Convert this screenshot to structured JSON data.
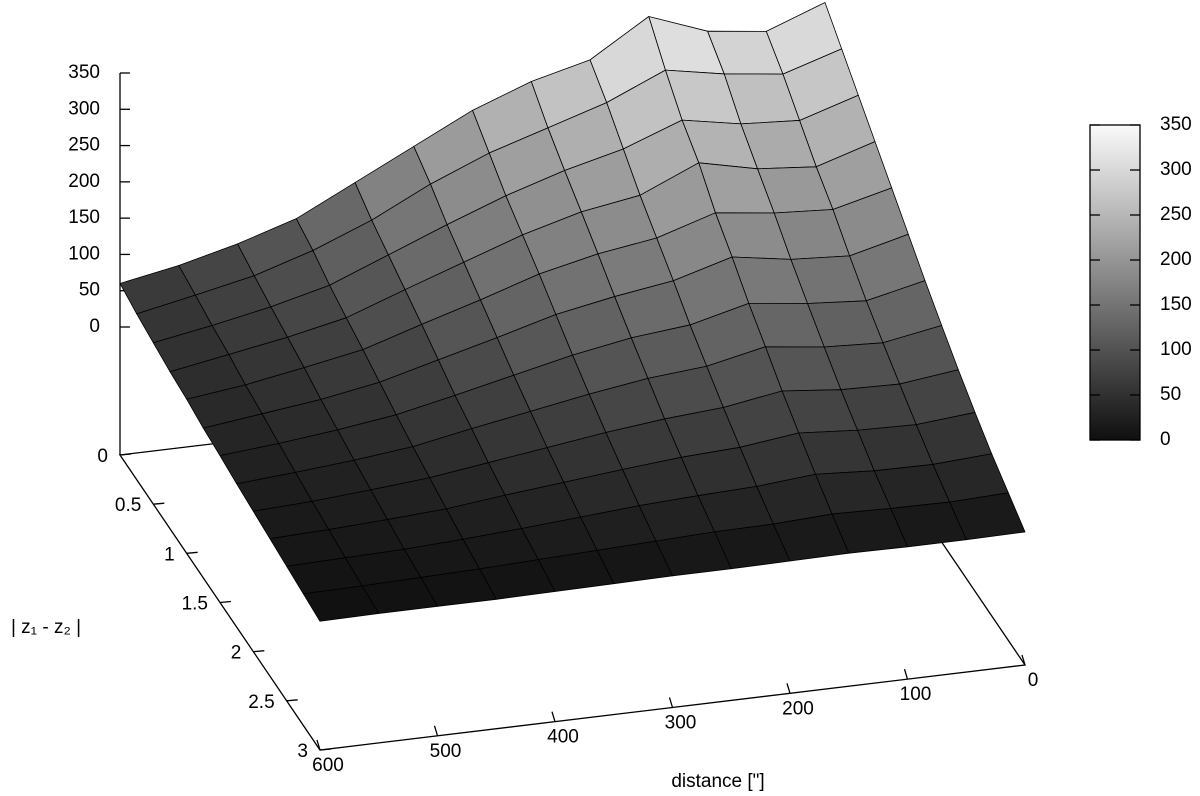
{
  "chart_data": {
    "type": "surface",
    "xlabel": "distance [\"]",
    "ylabel": "| z₁ - z₂ |",
    "x": [
      0,
      50,
      100,
      150,
      200,
      250,
      300,
      350,
      400,
      450,
      500,
      550,
      600
    ],
    "y": [
      0,
      0.25,
      0.5,
      0.75,
      1,
      1.25,
      1.5,
      1.75,
      2,
      2.25,
      2.5,
      2.75,
      3
    ],
    "z": [
      [
        330,
        300,
        310,
        340,
        290,
        270,
        240,
        200,
        160,
        120,
        95,
        75,
        60
      ],
      [
        300,
        275,
        285,
        300,
        265,
        240,
        215,
        182,
        142,
        110,
        85,
        68,
        52
      ],
      [
        270,
        245,
        250,
        265,
        235,
        215,
        190,
        160,
        128,
        96,
        76,
        60,
        46
      ],
      [
        240,
        215,
        222,
        240,
        205,
        192,
        170,
        142,
        114,
        85,
        68,
        54,
        40
      ],
      [
        210,
        190,
        195,
        205,
        180,
        168,
        150,
        124,
        100,
        75,
        60,
        46,
        36
      ],
      [
        180,
        160,
        165,
        178,
        155,
        143,
        128,
        106,
        85,
        64,
        50,
        40,
        30
      ],
      [
        150,
        132,
        138,
        148,
        128,
        120,
        106,
        88,
        70,
        53,
        42,
        33,
        26
      ],
      [
        122,
        108,
        112,
        122,
        105,
        98,
        86,
        72,
        58,
        43,
        34,
        27,
        21
      ],
      [
        95,
        85,
        87,
        95,
        82,
        76,
        67,
        56,
        45,
        34,
        27,
        21,
        17
      ],
      [
        70,
        63,
        65,
        71,
        61,
        57,
        50,
        42,
        34,
        25,
        20,
        16,
        13
      ],
      [
        47,
        42,
        43,
        48,
        41,
        38,
        34,
        28,
        22,
        17,
        13,
        11,
        9
      ],
      [
        27,
        24,
        25,
        27,
        23,
        22,
        19,
        16,
        13,
        10,
        8,
        6,
        5
      ],
      [
        7,
        6,
        6,
        7,
        6,
        5,
        5,
        4,
        3,
        2,
        2,
        2,
        1
      ]
    ],
    "xlim": [
      0,
      600
    ],
    "xticks": [
      0,
      100,
      200,
      300,
      400,
      500,
      600
    ],
    "ylim": [
      0,
      3
    ],
    "yticks": [
      0,
      0.5,
      1,
      1.5,
      2,
      2.5,
      3
    ],
    "zlim": [
      0,
      350
    ],
    "zticks": [
      0,
      50,
      100,
      150,
      200,
      250,
      300,
      350
    ],
    "cblim": [
      0,
      350
    ],
    "cbticks": [
      0,
      50,
      100,
      150,
      200,
      250,
      300,
      350
    ],
    "colormap": "gray"
  }
}
